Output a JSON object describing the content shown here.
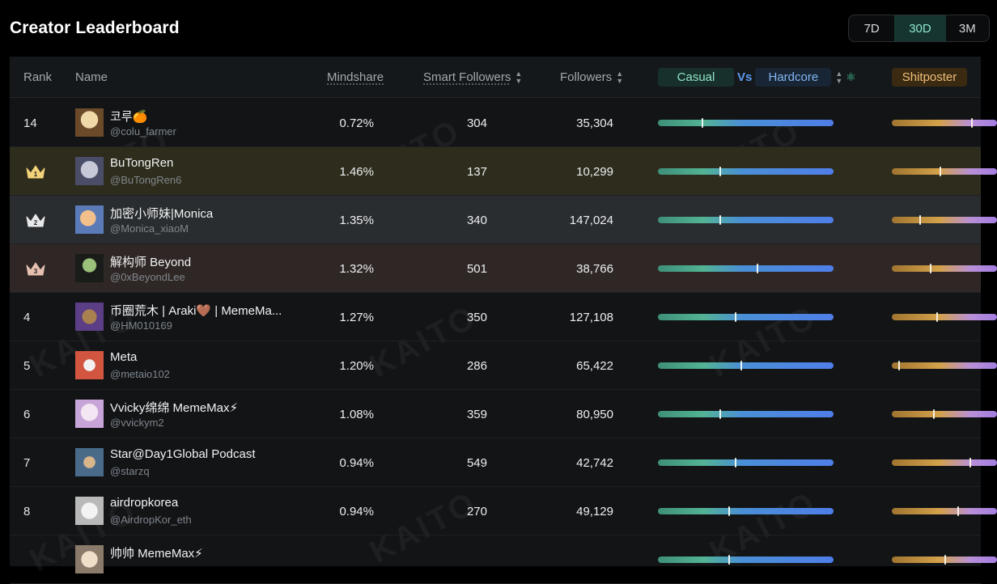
{
  "page": {
    "title": "Creator Leaderboard"
  },
  "time_range": {
    "options": [
      "7D",
      "30D",
      "3M"
    ],
    "selected": "30D"
  },
  "table": {
    "headers": {
      "rank": "Rank",
      "name": "Name",
      "mindshare": "Mindshare",
      "smart_followers": "Smart Followers",
      "followers": "Followers",
      "casual": "Casual",
      "vs": "Vs",
      "hardcore": "Hardcore",
      "shitposter": "Shitposter"
    },
    "rows": [
      {
        "rank": "14",
        "name": "코루🍊",
        "handle": "@colu_farmer",
        "mindshare": "0.72%",
        "smart_followers": "304",
        "followers": "35,304",
        "casual_hardcore": 0.25,
        "shitposter": 0.75
      },
      {
        "rank": "1",
        "name": "BuTongRen",
        "handle": "@BuTongRen6",
        "mindshare": "1.46%",
        "smart_followers": "137",
        "followers": "10,299",
        "casual_hardcore": 0.35,
        "shitposter": 0.45
      },
      {
        "rank": "2",
        "name": "加密小师妹|Monica",
        "handle": "@Monica_xiaoM",
        "mindshare": "1.35%",
        "smart_followers": "340",
        "followers": "147,024",
        "casual_hardcore": 0.35,
        "shitposter": 0.26
      },
      {
        "rank": "3",
        "name": "解构师 Beyond",
        "handle": "@0xBeyondLee",
        "mindshare": "1.32%",
        "smart_followers": "501",
        "followers": "38,766",
        "casual_hardcore": 0.56,
        "shitposter": 0.36
      },
      {
        "rank": "4",
        "name": "币圈荒木 | Araki🤎 | MemeMa...",
        "handle": "@HM010169",
        "mindshare": "1.27%",
        "smart_followers": "350",
        "followers": "127,108",
        "casual_hardcore": 0.44,
        "shitposter": 0.42
      },
      {
        "rank": "5",
        "name": "Meta",
        "handle": "@metaio102",
        "mindshare": "1.20%",
        "smart_followers": "286",
        "followers": "65,422",
        "casual_hardcore": 0.47,
        "shitposter": 0.06
      },
      {
        "rank": "6",
        "name": "Vvicky绵绵 MemeMax⚡",
        "handle": "@vvickym2",
        "mindshare": "1.08%",
        "smart_followers": "359",
        "followers": "80,950",
        "casual_hardcore": 0.35,
        "shitposter": 0.39
      },
      {
        "rank": "7",
        "name": "Star@Day1Global Podcast",
        "handle": "@starzq",
        "mindshare": "0.94%",
        "smart_followers": "549",
        "followers": "42,742",
        "casual_hardcore": 0.44,
        "shitposter": 0.74
      },
      {
        "rank": "8",
        "name": "airdropkorea",
        "handle": "@AirdropKor_eth",
        "mindshare": "0.94%",
        "smart_followers": "270",
        "followers": "49,129",
        "casual_hardcore": 0.4,
        "shitposter": 0.62
      },
      {
        "rank": "",
        "name": "帅帅 MemeMax⚡",
        "handle": "",
        "mindshare": "",
        "smart_followers": "",
        "followers": "",
        "casual_hardcore": 0.4,
        "shitposter": 0.5
      }
    ]
  },
  "colors": {
    "crown_gold": "#f3d27a",
    "crown_silver": "#e6e8ea",
    "crown_bronze": "#e6c0b0",
    "accent_teal": "#8fe6cf",
    "accent_blue": "#5b9af0"
  },
  "icons": {
    "sort": "sort-arrows-icon",
    "crown": "crown-icon",
    "atom": "atom-icon"
  }
}
